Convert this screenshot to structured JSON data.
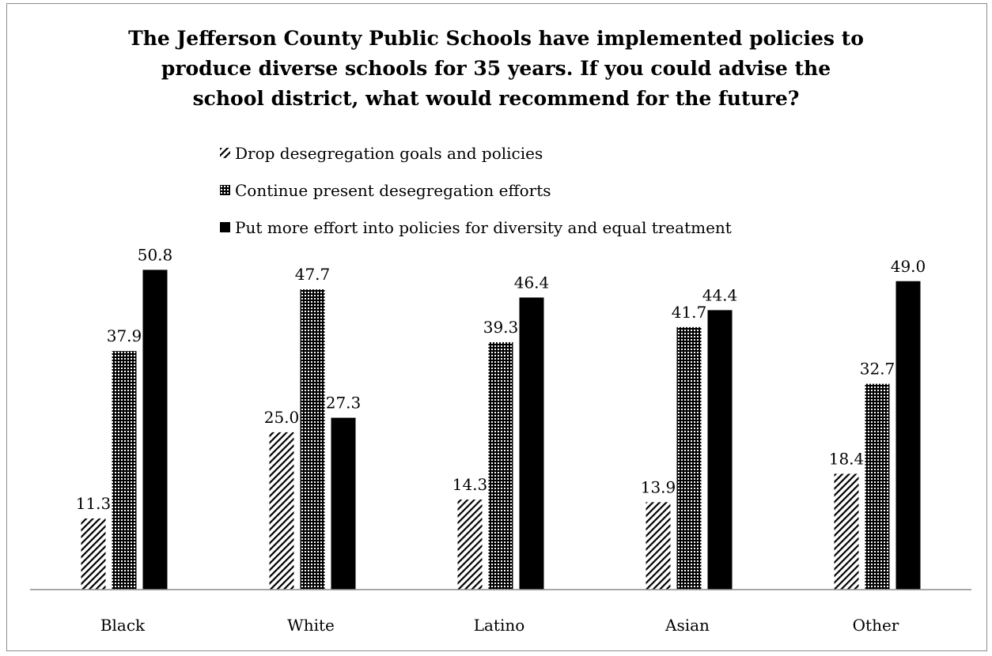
{
  "chart_data": {
    "type": "bar",
    "title": "The Jefferson County Public Schools have implemented policies to\nproduce diverse schools for 35 years.  If you could advise the\nschool district, what would recommend for the future?",
    "categories": [
      "Black",
      "White",
      "Latino",
      "Asian",
      "Other"
    ],
    "series": [
      {
        "name": "Drop desegregation goals and policies",
        "values": [
          11.3,
          25.0,
          14.3,
          13.9,
          18.4
        ],
        "pattern": "diagonal-hatch"
      },
      {
        "name": "Continue present desegregation efforts",
        "values": [
          37.9,
          47.7,
          39.3,
          41.7,
          32.7
        ],
        "pattern": "dotted-grid"
      },
      {
        "name": "Put more effort into policies for diversity and equal treatment",
        "values": [
          50.8,
          27.3,
          46.4,
          44.4,
          49.0
        ],
        "pattern": "solid"
      }
    ],
    "data_labels": [
      [
        "11.3",
        "25.0",
        "14.3",
        "13.9",
        "18.4"
      ],
      [
        "37.9",
        "47.7",
        "39.3",
        "41.7",
        "32.7"
      ],
      [
        "50.8",
        "27.3",
        "46.4",
        "44.4",
        "49.0"
      ]
    ],
    "xlabel": "",
    "ylabel": "",
    "ylim": [
      0,
      56
    ],
    "grid": false,
    "legend_position": "top-left",
    "colors": {
      "bar": "#000000",
      "background": "#ffffff"
    }
  }
}
